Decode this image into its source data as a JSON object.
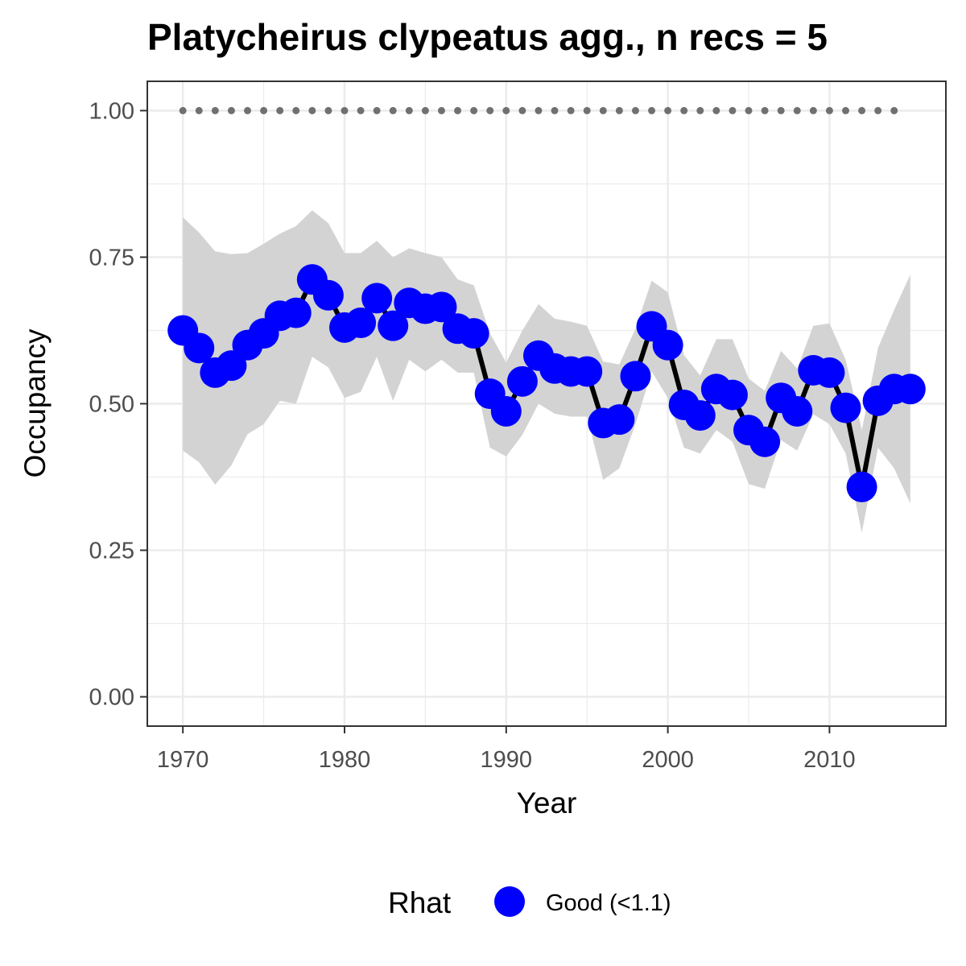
{
  "chart_data": {
    "type": "line",
    "title": "Platycheirus clypeatus agg., n recs = 5",
    "xlabel": "Year",
    "ylabel": "Occupancy",
    "xlim": [
      1967.8,
      2017.2
    ],
    "ylim": [
      -0.05,
      1.05
    ],
    "x_ticks": [
      1970,
      1980,
      1990,
      2000,
      2010
    ],
    "x_tick_labels": [
      "1970",
      "1980",
      "1990",
      "2000",
      "2010"
    ],
    "y_ticks": [
      0,
      0.25,
      0.5,
      0.75,
      1.0
    ],
    "y_tick_labels": [
      "0.00",
      "0.25",
      "0.50",
      "0.75",
      "1.00"
    ],
    "grid": true,
    "legend": {
      "title": "Rhat",
      "position": "bottom",
      "items": [
        {
          "label": "Good (<1.1)",
          "color": "#0000ff"
        }
      ]
    },
    "colors": {
      "points": "#0000ff",
      "line": "#000000",
      "ribbon": "#d3d3d3",
      "reference": "#707070"
    },
    "reference_line": {
      "y": 1.0,
      "x_start": 1970,
      "x_end": 2014
    },
    "x": [
      1970,
      1971,
      1972,
      1973,
      1974,
      1975,
      1976,
      1977,
      1978,
      1979,
      1980,
      1981,
      1982,
      1983,
      1984,
      1985,
      1986,
      1987,
      1988,
      1989,
      1990,
      1991,
      1992,
      1993,
      1994,
      1995,
      1996,
      1997,
      1998,
      1999,
      2000,
      2001,
      2002,
      2003,
      2004,
      2005,
      2006,
      2007,
      2008,
      2009,
      2010,
      2011,
      2012,
      2013,
      2014,
      2015
    ],
    "series": [
      {
        "values": [
          0.625,
          0.595,
          0.553,
          0.565,
          0.6,
          0.62,
          0.65,
          0.655,
          0.712,
          0.685,
          0.63,
          0.638,
          0.68,
          0.633,
          0.672,
          0.662,
          0.665,
          0.628,
          0.62,
          0.517,
          0.487,
          0.538,
          0.582,
          0.56,
          0.555,
          0.555,
          0.467,
          0.473,
          0.547,
          0.632,
          0.6,
          0.498,
          0.48,
          0.525,
          0.515,
          0.455,
          0.435,
          0.51,
          0.487,
          0.557,
          0.553,
          0.493,
          0.358,
          0.505,
          0.525,
          0.525
        ],
        "lower": [
          0.42,
          0.4,
          0.362,
          0.395,
          0.448,
          0.465,
          0.505,
          0.5,
          0.58,
          0.562,
          0.51,
          0.52,
          0.58,
          0.505,
          0.575,
          0.555,
          0.575,
          0.553,
          0.553,
          0.425,
          0.41,
          0.447,
          0.5,
          0.483,
          0.478,
          0.478,
          0.37,
          0.39,
          0.465,
          0.555,
          0.51,
          0.425,
          0.415,
          0.455,
          0.435,
          0.363,
          0.355,
          0.438,
          0.42,
          0.482,
          0.465,
          0.415,
          0.28,
          0.425,
          0.39,
          0.33
        ],
        "upper": [
          0.818,
          0.792,
          0.76,
          0.755,
          0.757,
          0.773,
          0.79,
          0.803,
          0.83,
          0.808,
          0.757,
          0.757,
          0.778,
          0.75,
          0.765,
          0.757,
          0.75,
          0.712,
          0.702,
          0.62,
          0.57,
          0.625,
          0.67,
          0.645,
          0.64,
          0.633,
          0.572,
          0.567,
          0.628,
          0.71,
          0.69,
          0.583,
          0.548,
          0.61,
          0.61,
          0.543,
          0.522,
          0.59,
          0.56,
          0.633,
          0.637,
          0.575,
          0.455,
          0.595,
          0.66,
          0.72
        ]
      }
    ]
  }
}
